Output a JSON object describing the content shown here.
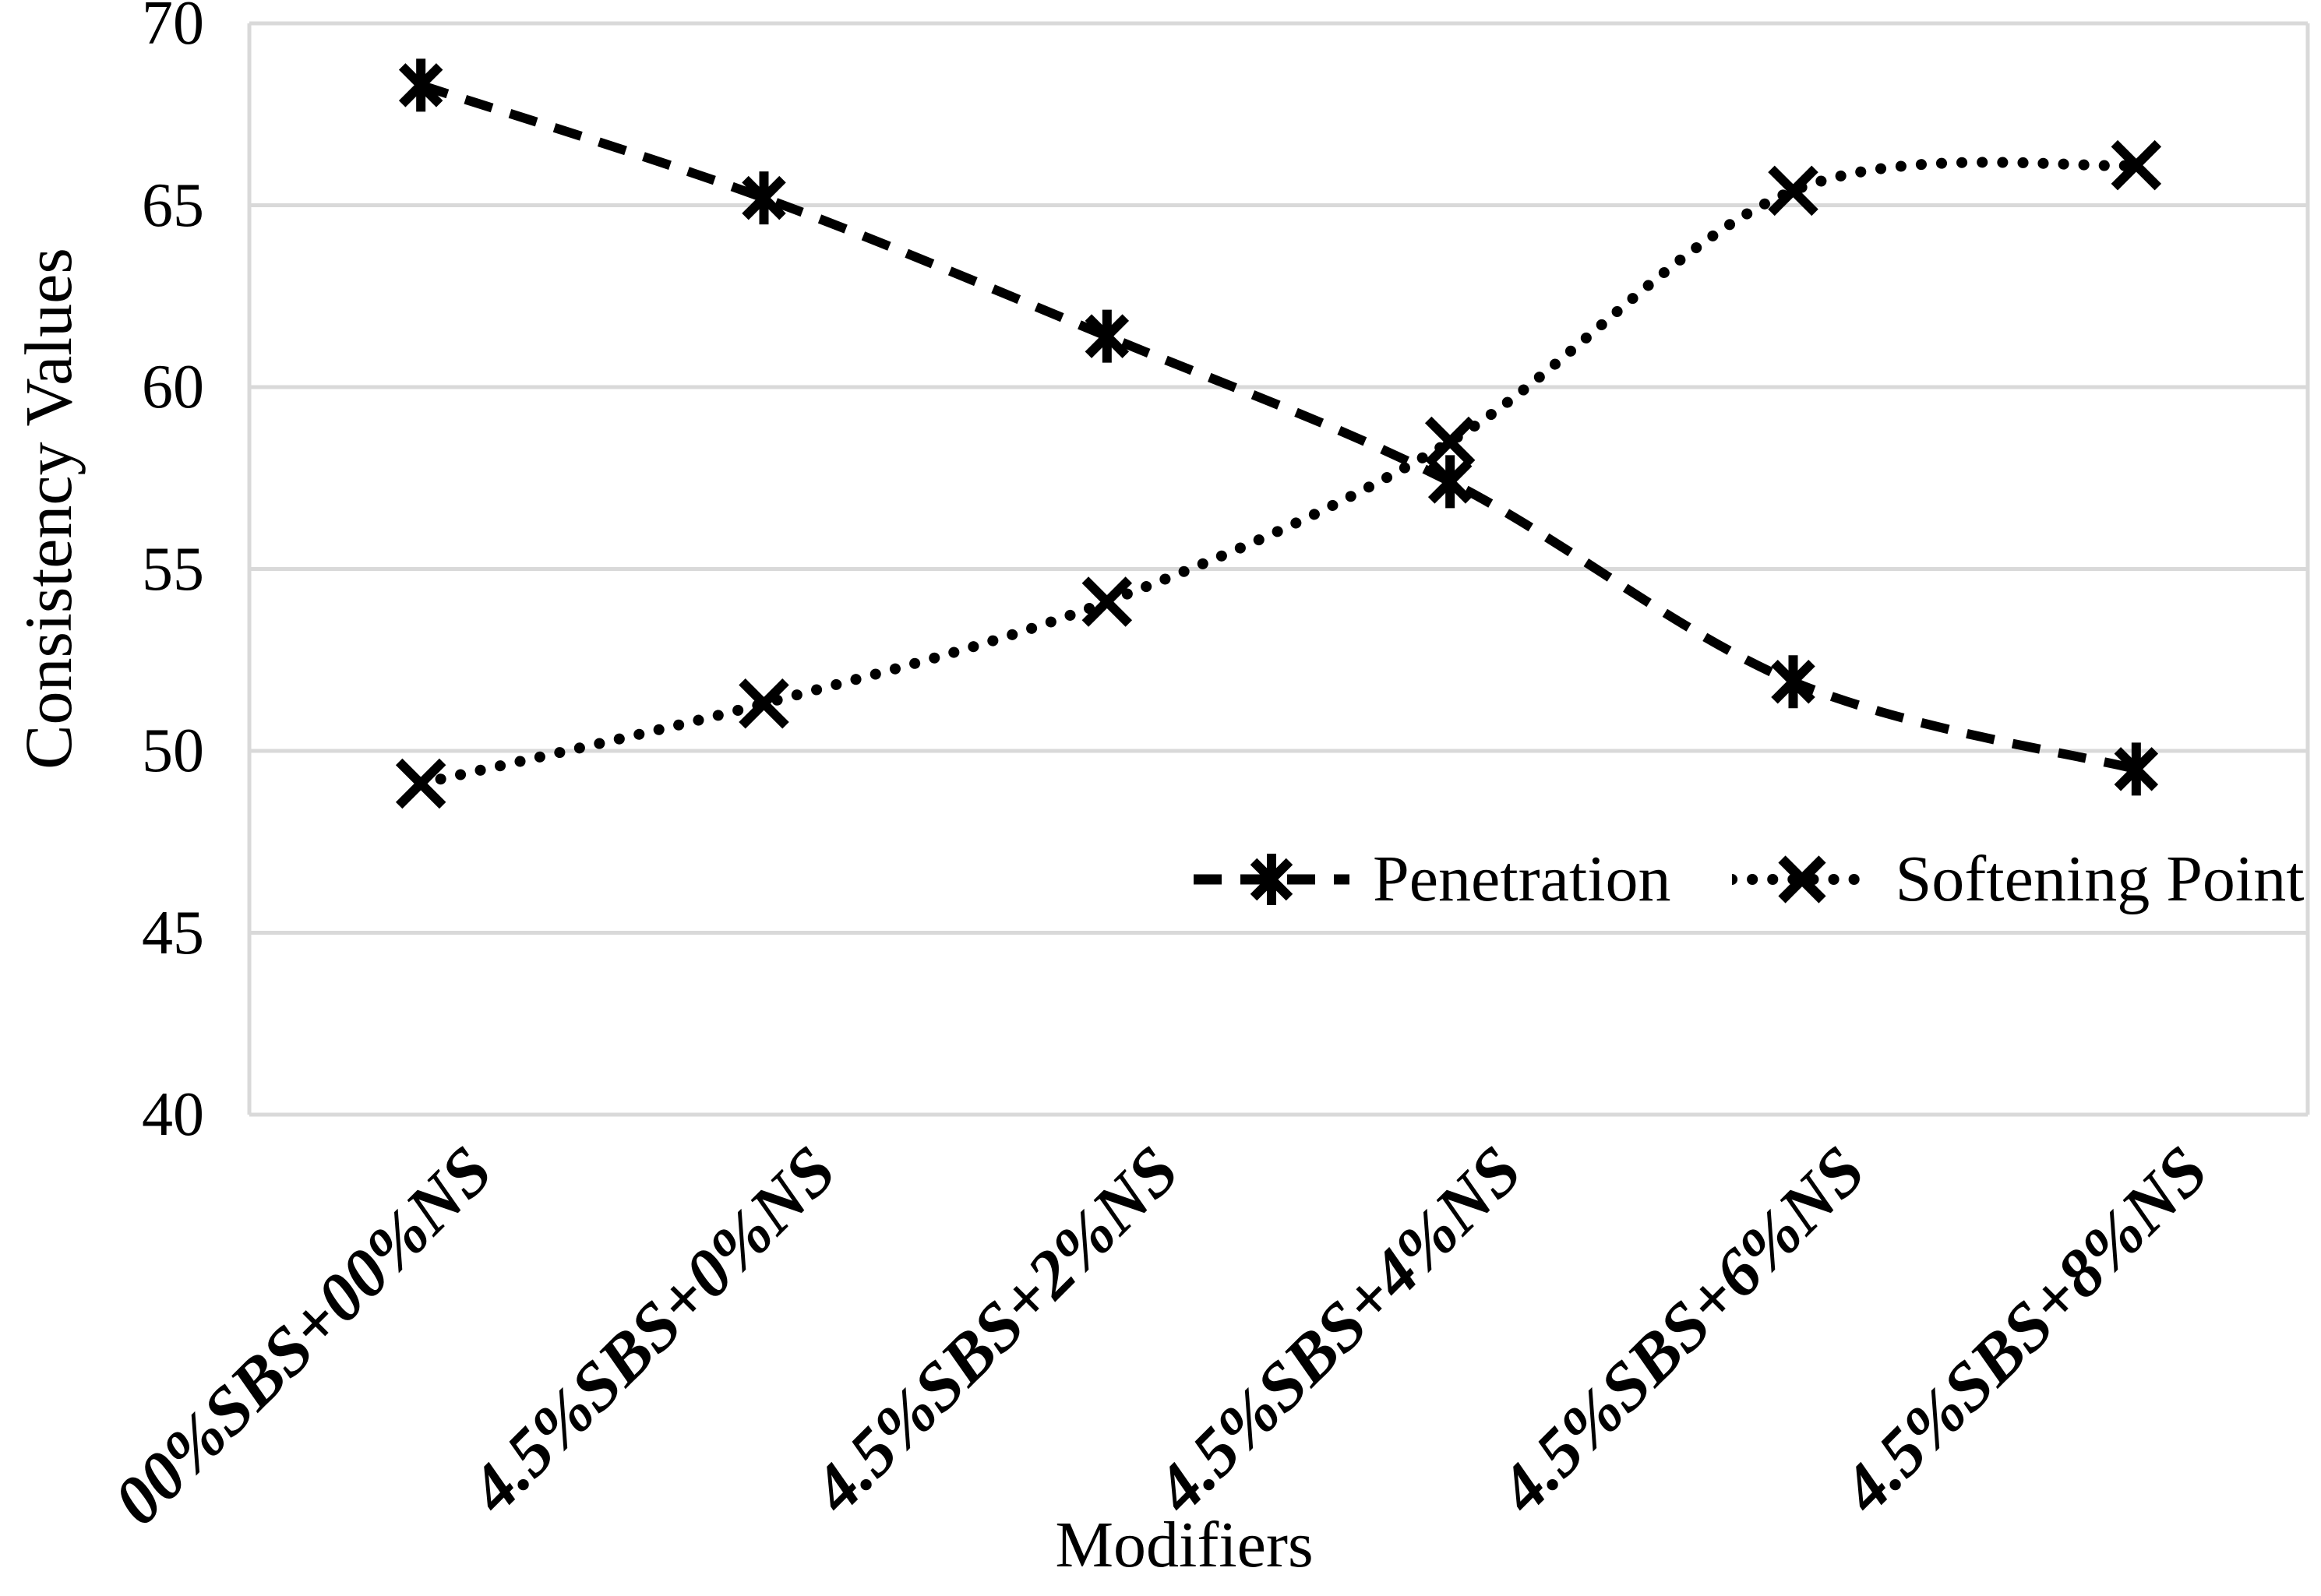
{
  "figure": {
    "background_color": "#ffffff",
    "grid_color": "#d9d9d9",
    "series_color": "#000000",
    "text_color": "#000000"
  },
  "axes": {
    "x_title": "Modifiers",
    "y_title": "Consistency Values"
  },
  "chart_data": {
    "type": "line",
    "title": "",
    "xlabel": "Modifiers",
    "ylabel": "Consistency Values",
    "ylim": [
      40,
      70
    ],
    "ytick_step": 5,
    "yticks": [
      70,
      65,
      60,
      55,
      50,
      45,
      40
    ],
    "grid": "horizontal-only",
    "legend_position": "inside-bottom-right",
    "categories": [
      "00%SBS+00%NS",
      "4.5%SBS+0%NS",
      "4.5%SBS+2%NS",
      "4.5%SBS+4%NS",
      "4.5%SBS+6%NS",
      "4.5%SBS+8%NS"
    ],
    "series": [
      {
        "name": "Penetration",
        "marker": "asterisk",
        "line_style": "dashed",
        "smooth": true,
        "color": "#000000",
        "values": [
          68.3,
          65.2,
          61.4,
          57.4,
          51.9,
          49.5
        ]
      },
      {
        "name": "Softening Point",
        "marker": "x",
        "line_style": "dotted",
        "smooth": true,
        "color": "#000000",
        "values": [
          49.1,
          51.3,
          54.1,
          58.5,
          65.4,
          66.1
        ]
      }
    ]
  }
}
